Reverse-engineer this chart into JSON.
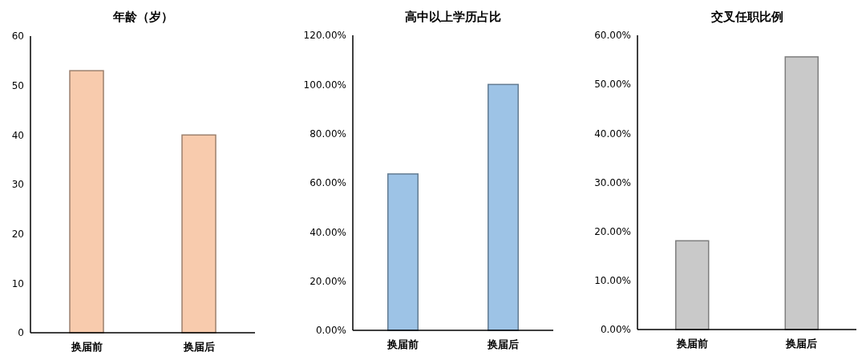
{
  "chart_data": [
    {
      "type": "bar",
      "title": "年龄（岁）",
      "categories": [
        "换届前",
        "换届后"
      ],
      "values": [
        53,
        40
      ],
      "color": "#f8cbad",
      "ylim": [
        0,
        60
      ],
      "yticks": [
        0,
        10,
        20,
        30,
        40,
        50,
        60
      ]
    },
    {
      "type": "bar",
      "title": "高中以上学历占比",
      "categories": [
        "换届前",
        "换届后"
      ],
      "values": [
        63.6,
        100
      ],
      "color": "#9dc3e6",
      "ylim": [
        0,
        120
      ],
      "yticks": [
        {
          "value": 0,
          "label": "0.00%"
        },
        {
          "value": 20,
          "label": "20.00%"
        },
        {
          "value": 40,
          "label": "40.00%"
        },
        {
          "value": 60,
          "label": "60.00%"
        },
        {
          "value": 80,
          "label": "80.00%"
        },
        {
          "value": 100,
          "label": "100.00%"
        },
        {
          "value": 120,
          "label": "120.00%"
        }
      ]
    },
    {
      "type": "bar",
      "title": "交叉任职比例",
      "categories": [
        "换届前",
        "换届后"
      ],
      "values": [
        18.1,
        55.6
      ],
      "color": "#c9c9c9",
      "ylim": [
        0,
        60
      ],
      "yticks": [
        {
          "value": 0,
          "label": "0.00%"
        },
        {
          "value": 10,
          "label": "10.00%"
        },
        {
          "value": 20,
          "label": "20.00%"
        },
        {
          "value": 30,
          "label": "30.00%"
        },
        {
          "value": 40,
          "label": "40.00%"
        },
        {
          "value": 50,
          "label": "50.00%"
        },
        {
          "value": 60,
          "label": "60.00%"
        }
      ]
    }
  ]
}
